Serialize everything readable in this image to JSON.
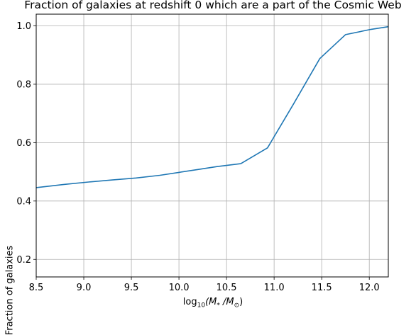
{
  "chart_data": {
    "type": "line",
    "title": "Fraction of galaxies at redshift 0 which are a part of the Cosmic Web",
    "xlabel_main": "log",
    "xlabel_sub": "10",
    "xlabel_rest": "(M",
    "xlabel_star": "*",
    "xlabel_mid": " /M",
    "xlabel_sun": "⊙",
    "xlabel_end": ")",
    "ylabel": "Fraction of galaxies",
    "xlim": [
      8.5,
      12.2
    ],
    "ylim": [
      0.14,
      1.04
    ],
    "xticks": [
      8.5,
      9.0,
      9.5,
      10.0,
      10.5,
      11.0,
      11.5,
      12.0
    ],
    "xtick_labels": [
      "8.5",
      "9.0",
      "9.5",
      "10.0",
      "10.5",
      "11.0",
      "11.5",
      "12.0"
    ],
    "yticks": [
      0.2,
      0.4,
      0.6,
      0.8,
      1.0
    ],
    "ytick_labels": [
      "0.2",
      "0.4",
      "0.6",
      "0.8",
      "1.0"
    ],
    "grid": true,
    "line_color": "#1f77b4",
    "series": [
      {
        "x": [
          8.5,
          8.8,
          9.05,
          9.3,
          9.55,
          9.8,
          10.0,
          10.2,
          10.4,
          10.65,
          10.93,
          11.2,
          11.48,
          11.75,
          12.02,
          12.2
        ],
        "y": [
          0.446,
          0.457,
          0.465,
          0.472,
          0.479,
          0.488,
          0.498,
          0.508,
          0.518,
          0.528,
          0.582,
          0.73,
          0.888,
          0.97,
          0.988,
          0.997
        ]
      }
    ]
  }
}
